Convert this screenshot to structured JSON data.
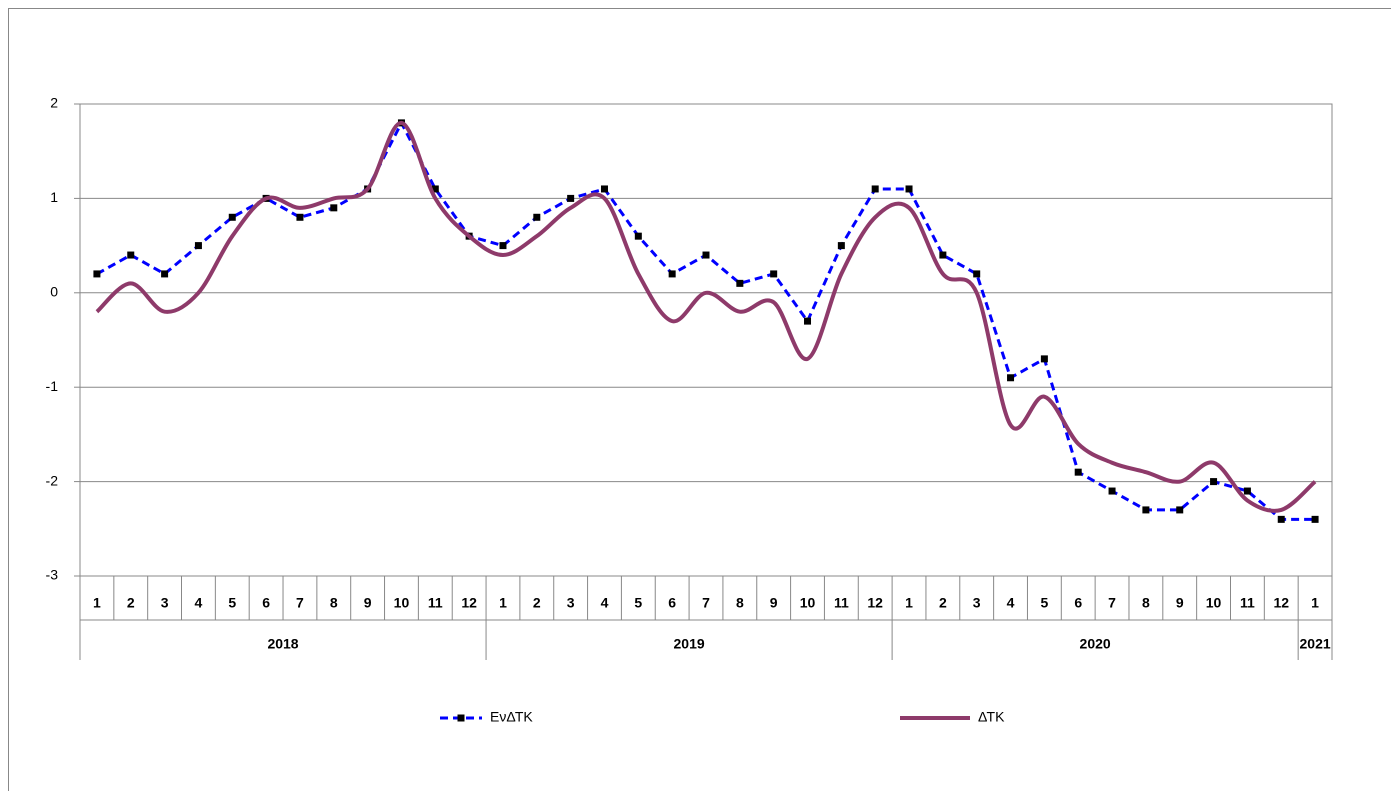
{
  "chart_data": {
    "type": "line",
    "categories": [
      "1",
      "2",
      "3",
      "4",
      "5",
      "6",
      "7",
      "8",
      "9",
      "10",
      "11",
      "12",
      "1",
      "2",
      "3",
      "4",
      "5",
      "6",
      "7",
      "8",
      "9",
      "10",
      "11",
      "12",
      "1",
      "2",
      "3",
      "4",
      "5",
      "6",
      "7",
      "8",
      "9",
      "10",
      "11",
      "12",
      "1"
    ],
    "groups": [
      "2018",
      "2019",
      "2020",
      "2021"
    ],
    "series": [
      {
        "name": "ΕνΔΤΚ",
        "color": "#0000ff",
        "style": "dashed",
        "marker": "square",
        "values": [
          0.2,
          0.4,
          0.2,
          0.5,
          0.8,
          1.0,
          0.8,
          0.9,
          1.1,
          1.8,
          1.1,
          0.6,
          0.5,
          0.8,
          1.0,
          1.1,
          0.6,
          0.2,
          0.4,
          0.1,
          0.2,
          -0.3,
          0.5,
          1.1,
          1.1,
          0.4,
          0.2,
          -0.9,
          -0.7,
          -1.9,
          -2.1,
          -2.3,
          -2.3,
          -2.0,
          -2.1,
          -2.4,
          -2.4
        ]
      },
      {
        "name": "ΔΤΚ",
        "color": "#8e3a6a",
        "style": "solid",
        "smooth": true,
        "values": [
          -0.2,
          0.1,
          -0.2,
          0.0,
          0.6,
          1.0,
          0.9,
          1.0,
          1.1,
          1.8,
          1.0,
          0.6,
          0.4,
          0.6,
          0.9,
          1.0,
          0.2,
          -0.3,
          0.0,
          -0.2,
          -0.1,
          -0.7,
          0.2,
          0.8,
          0.9,
          0.2,
          0.0,
          -1.4,
          -1.1,
          -1.6,
          -1.8,
          -1.9,
          -2.0,
          -1.8,
          -2.2,
          -2.3,
          -2.0
        ]
      }
    ],
    "ylim": [
      -3,
      2
    ],
    "yticks": [
      -3,
      -2,
      -1,
      0,
      1,
      2
    ],
    "grid": true,
    "legend": "bottom"
  }
}
